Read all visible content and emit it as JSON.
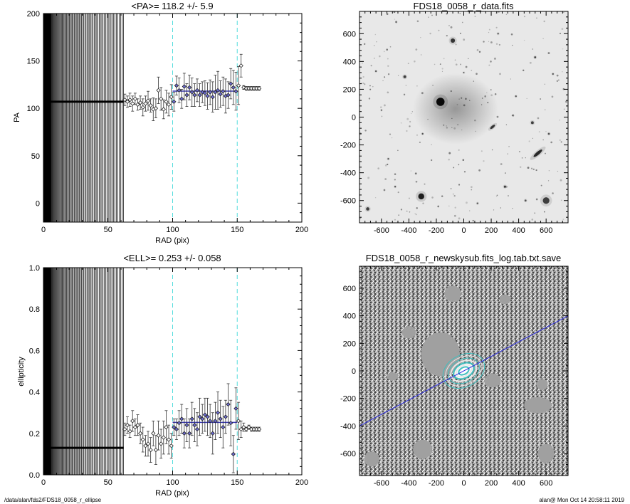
{
  "footer": {
    "left": "/data/alan/fds2/FDS18_0058_r_ellipse",
    "right": "alan@  Mon Oct 14 20:58:11 2019"
  },
  "colors": {
    "mean_line": "#3a3ab8",
    "vline": "#55dddd",
    "masked": "#a0a0a0",
    "pa_axis_line": "#2a2ae0"
  },
  "chart_data": [
    {
      "id": "pa",
      "type": "scatter",
      "title": "<PA>= 118.2 +/-   5.9",
      "xlabel": "RAD (pix)",
      "ylabel": "PA",
      "xlim": [
        0,
        200
      ],
      "ylim": [
        -20,
        200
      ],
      "xticks": [
        0,
        50,
        100,
        150,
        200
      ],
      "yticks": [
        0,
        50,
        100,
        150,
        200
      ],
      "fit_window": [
        100,
        150
      ],
      "mean_value": 118.2,
      "inner_fill_to": 62,
      "inner_level": 107,
      "points": [
        [
          63,
          109,
          6
        ],
        [
          65,
          107,
          6
        ],
        [
          67,
          109,
          7
        ],
        [
          69,
          105,
          8
        ],
        [
          71,
          110,
          6
        ],
        [
          73,
          104,
          6
        ],
        [
          75,
          106,
          7
        ],
        [
          77,
          101,
          9
        ],
        [
          79,
          105,
          8
        ],
        [
          81,
          108,
          10
        ],
        [
          83,
          103,
          7
        ],
        [
          85,
          99,
          12
        ],
        [
          87,
          100,
          10
        ],
        [
          89,
          119,
          14
        ],
        [
          91,
          110,
          12
        ],
        [
          93,
          99,
          10
        ],
        [
          95,
          107,
          12
        ],
        [
          97,
          104,
          12
        ],
        [
          99,
          112,
          13
        ],
        [
          101,
          107,
          10
        ],
        [
          103,
          124,
          10
        ],
        [
          105,
          119,
          13
        ],
        [
          107,
          110,
          10
        ],
        [
          109,
          123,
          14
        ],
        [
          111,
          114,
          12
        ],
        [
          113,
          122,
          13
        ],
        [
          115,
          117,
          15
        ],
        [
          117,
          114,
          12
        ],
        [
          119,
          119,
          12
        ],
        [
          121,
          114,
          12
        ],
        [
          123,
          117,
          11
        ],
        [
          125,
          116,
          13
        ],
        [
          127,
          113,
          14
        ],
        [
          129,
          117,
          13
        ],
        [
          131,
          112,
          16
        ],
        [
          133,
          117,
          18
        ],
        [
          135,
          119,
          20
        ],
        [
          137,
          115,
          14
        ],
        [
          139,
          118,
          15
        ],
        [
          141,
          113,
          18
        ],
        [
          143,
          114,
          14
        ],
        [
          145,
          126,
          16
        ],
        [
          147,
          122,
          18
        ],
        [
          149,
          118,
          20
        ],
        [
          151,
          124,
          20
        ],
        [
          153,
          145,
          12
        ],
        [
          155,
          122,
          2
        ],
        [
          157,
          121,
          2
        ],
        [
          159,
          121,
          2
        ],
        [
          161,
          121,
          2
        ],
        [
          163,
          121,
          2
        ],
        [
          165,
          121,
          2
        ],
        [
          167,
          121,
          2
        ]
      ]
    },
    {
      "id": "ell",
      "type": "scatter",
      "title": "<ELL>= 0.253 +/-  0.058",
      "xlabel": "RAD (pix)",
      "ylabel": "ellipticity",
      "xlim": [
        0,
        200
      ],
      "ylim": [
        0,
        1.0
      ],
      "xticks": [
        0,
        50,
        100,
        150,
        200
      ],
      "yticks": [
        0.0,
        0.2,
        0.4,
        0.6,
        0.8,
        1.0
      ],
      "fit_window": [
        100,
        150
      ],
      "mean_value": 0.253,
      "inner_fill_to": 62,
      "inner_level": 0.13,
      "points": [
        [
          63,
          0.22,
          0.03
        ],
        [
          65,
          0.24,
          0.04
        ],
        [
          67,
          0.21,
          0.03
        ],
        [
          69,
          0.26,
          0.05
        ],
        [
          71,
          0.23,
          0.04
        ],
        [
          73,
          0.24,
          0.05
        ],
        [
          75,
          0.2,
          0.05
        ],
        [
          77,
          0.17,
          0.06
        ],
        [
          79,
          0.14,
          0.05
        ],
        [
          81,
          0.15,
          0.06
        ],
        [
          83,
          0.12,
          0.06
        ],
        [
          85,
          0.2,
          0.06
        ],
        [
          87,
          0.12,
          0.07
        ],
        [
          89,
          0.19,
          0.07
        ],
        [
          91,
          0.15,
          0.07
        ],
        [
          93,
          0.18,
          0.08
        ],
        [
          95,
          0.23,
          0.08
        ],
        [
          97,
          0.17,
          0.07
        ],
        [
          99,
          0.14,
          0.06
        ],
        [
          101,
          0.23,
          0.04
        ],
        [
          103,
          0.22,
          0.05
        ],
        [
          105,
          0.25,
          0.06
        ],
        [
          107,
          0.27,
          0.07
        ],
        [
          109,
          0.2,
          0.07
        ],
        [
          111,
          0.24,
          0.08
        ],
        [
          113,
          0.2,
          0.07
        ],
        [
          115,
          0.27,
          0.08
        ],
        [
          117,
          0.24,
          0.08
        ],
        [
          119,
          0.22,
          0.08
        ],
        [
          121,
          0.28,
          0.09
        ],
        [
          123,
          0.27,
          0.07
        ],
        [
          125,
          0.29,
          0.08
        ],
        [
          127,
          0.28,
          0.09
        ],
        [
          129,
          0.26,
          0.08
        ],
        [
          131,
          0.2,
          0.1
        ],
        [
          133,
          0.26,
          0.09
        ],
        [
          135,
          0.3,
          0.1
        ],
        [
          137,
          0.27,
          0.09
        ],
        [
          139,
          0.23,
          0.1
        ],
        [
          141,
          0.28,
          0.08
        ],
        [
          143,
          0.34,
          0.1
        ],
        [
          145,
          0.25,
          0.11
        ],
        [
          147,
          0.1,
          0.09
        ],
        [
          149,
          0.32,
          0.1
        ],
        [
          151,
          0.26,
          0.09
        ],
        [
          153,
          0.22,
          0.04
        ],
        [
          155,
          0.23,
          0.02
        ],
        [
          157,
          0.22,
          0.01
        ],
        [
          159,
          0.23,
          0.01
        ],
        [
          161,
          0.22,
          0.01
        ],
        [
          163,
          0.22,
          0.01
        ],
        [
          165,
          0.22,
          0.01
        ],
        [
          167,
          0.22,
          0.01
        ]
      ]
    },
    {
      "id": "img1",
      "type": "heatmap",
      "title": "FDS18_0058_r_data.fits",
      "xlim": [
        -760,
        760
      ],
      "ylim": [
        -760,
        760
      ],
      "xticks": [
        -600,
        -400,
        -200,
        0,
        200,
        400,
        600
      ],
      "yticks": [
        -600,
        -400,
        -200,
        0,
        200,
        400,
        600
      ],
      "sources": [
        [
          -170,
          110,
          30,
          0.95,
          1
        ],
        [
          -310,
          -570,
          22,
          0.85,
          1
        ],
        [
          600,
          -600,
          24,
          0.7,
          1
        ],
        [
          -80,
          550,
          16,
          0.75,
          1
        ],
        [
          210,
          -70,
          22,
          0.75,
          0.4
        ],
        [
          540,
          -260,
          40,
          0.8,
          0.28
        ],
        [
          500,
          -40,
          10,
          0.7,
          1
        ],
        [
          -430,
          290,
          10,
          0.7,
          1
        ],
        [
          -700,
          -660,
          12,
          0.7,
          1
        ],
        [
          520,
          430,
          7,
          0.7,
          1
        ],
        [
          650,
          310,
          6,
          0.6,
          1
        ],
        [
          -640,
          330,
          6,
          0.6,
          1
        ],
        [
          300,
          -500,
          8,
          0.7,
          1
        ],
        [
          -550,
          -300,
          6,
          0.6,
          1
        ],
        [
          100,
          -620,
          6,
          0.6,
          1
        ],
        [
          380,
          150,
          6,
          0.6,
          1
        ],
        [
          -300,
          -120,
          6,
          0.6,
          1
        ],
        [
          620,
          -120,
          7,
          0.6,
          1
        ],
        [
          -600,
          50,
          5,
          0.6,
          1
        ],
        [
          0,
          320,
          5,
          0.6,
          1
        ],
        [
          -500,
          -500,
          6,
          0.6,
          1
        ],
        [
          250,
          600,
          6,
          0.6,
          1
        ],
        [
          450,
          -600,
          7,
          0.6,
          1
        ]
      ]
    },
    {
      "id": "img2",
      "type": "heatmap",
      "title": "FDS18_0058_r_newskysub.fits_log.tab.txt.save",
      "xlim": [
        -760,
        760
      ],
      "ylim": [
        -760,
        760
      ],
      "xticks": [
        -600,
        -400,
        -200,
        0,
        200,
        400,
        600
      ],
      "yticks": [
        -600,
        -400,
        -200,
        0,
        200,
        400,
        600
      ],
      "masks": [
        [
          -170,
          120,
          140,
          160,
          0
        ],
        [
          -300,
          -570,
          70,
          70,
          0
        ],
        [
          600,
          -600,
          60,
          70,
          0
        ],
        [
          -80,
          560,
          60,
          60,
          0
        ],
        [
          540,
          -250,
          100,
          60,
          0
        ],
        [
          210,
          -70,
          60,
          50,
          0
        ],
        [
          -400,
          280,
          50,
          45,
          0
        ],
        [
          -670,
          -640,
          55,
          55,
          0
        ],
        [
          570,
          -100,
          40,
          40,
          0
        ],
        [
          -520,
          -40,
          40,
          30,
          0
        ],
        [
          300,
          520,
          40,
          35,
          0
        ]
      ],
      "ellipses": [
        [
          0,
          0,
          40,
          25
        ],
        [
          0,
          0,
          60,
          38
        ],
        [
          0,
          0,
          80,
          52
        ],
        [
          0,
          0,
          100,
          68
        ],
        [
          0,
          0,
          120,
          84
        ],
        [
          0,
          0,
          140,
          100
        ],
        [
          0,
          0,
          160,
          116
        ]
      ],
      "pa_line": [
        [
          -760,
          -400
        ],
        [
          760,
          400
        ]
      ]
    }
  ]
}
